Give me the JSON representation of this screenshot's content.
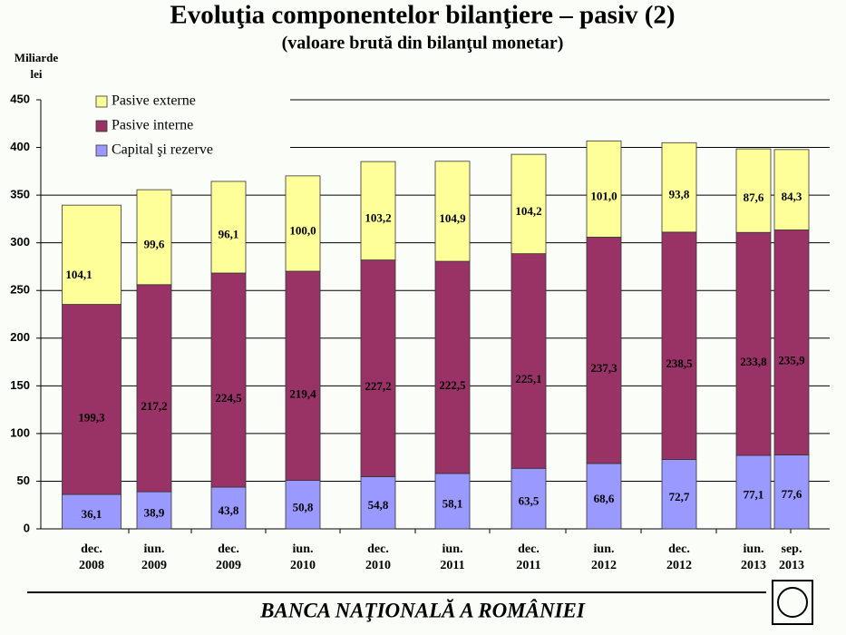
{
  "chart_data": {
    "type": "stacked_bar",
    "title": "Evoluţia componentelor bilanţiere – pasiv (2)",
    "subtitle": "(valoare brută din bilanţul monetar)",
    "y_label": "Miliarde lei",
    "categories": [
      "dec. 2008",
      "iun. 2009",
      "dec. 2009",
      "iun. 2010",
      "dec. 2010",
      "iun. 2011",
      "dec. 2011",
      "iun. 2012",
      "dec. 2012",
      "iun. 2013",
      "sep. 2013"
    ],
    "series": [
      {
        "name": "Capital şi rezerve",
        "color": "#9999ff",
        "values": [
          36.1,
          38.9,
          43.8,
          50.8,
          54.8,
          58.1,
          63.5,
          68.6,
          72.7,
          77.1,
          77.6
        ],
        "value_labels": [
          "36,1",
          "38,9",
          "43,8",
          "50,8",
          "54,8",
          "58,1",
          "63,5",
          "68,6",
          "72,7",
          "77,1",
          "77,6"
        ]
      },
      {
        "name": "Pasive interne",
        "color": "#993366",
        "values": [
          199.3,
          217.2,
          224.5,
          219.4,
          227.2,
          222.5,
          225.1,
          237.3,
          238.5,
          233.8,
          235.9
        ],
        "value_labels": [
          "199,3",
          "217,2",
          "224,5",
          "219,4",
          "227,2",
          "222,5",
          "225,1",
          "237,3",
          "238,5",
          "233,8",
          "235,9"
        ]
      },
      {
        "name": "Pasive externe",
        "color": "#ffff99",
        "values": [
          104.1,
          99.6,
          96.1,
          100.0,
          103.2,
          104.9,
          104.2,
          101.0,
          93.8,
          87.6,
          84.3
        ],
        "value_labels": [
          "104,1",
          "99,6",
          "96,1",
          "100,0",
          "103,2",
          "104,9",
          "104,2",
          "101,0",
          "93,8",
          "87,6",
          "84,3"
        ]
      }
    ],
    "ylim": [
      0,
      450
    ],
    "yticks": [
      0,
      50,
      100,
      150,
      200,
      250,
      300,
      350,
      400,
      450
    ],
    "grid": true
  },
  "footer": "BANCA NAŢIONALĂ A ROMÂNIEI"
}
